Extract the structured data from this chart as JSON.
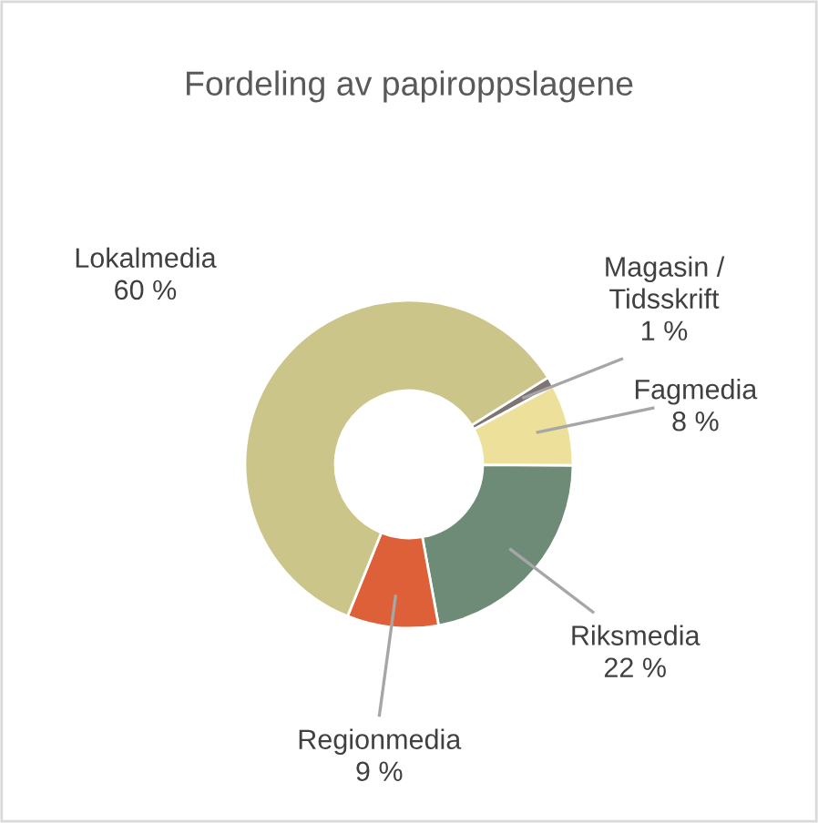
{
  "chart_data": {
    "type": "donut",
    "title": "Fordeling av papiroppslagene",
    "categories": [
      "Magasin / Tidsskrift",
      "Fagmedia",
      "Riksmedia",
      "Regionmedia",
      "Lokalmedia"
    ],
    "values": [
      1,
      8,
      22,
      9,
      60
    ],
    "colors": [
      "#7f7373",
      "#ede09a",
      "#6e8b78",
      "#dd6038",
      "#cbc58a"
    ],
    "value_labels": [
      "1 %",
      "8 %",
      "22 %",
      "9 %",
      "60 %"
    ],
    "legend": false
  }
}
